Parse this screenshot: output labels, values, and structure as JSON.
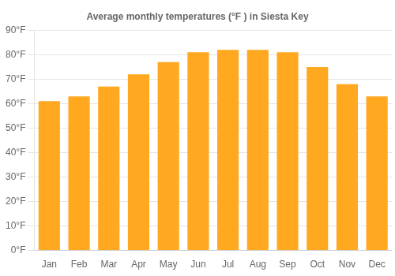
{
  "chart_data": {
    "type": "bar",
    "title": "Average monthly temperatures (°F ) in Siesta Key",
    "categories": [
      "Jan",
      "Feb",
      "Mar",
      "Apr",
      "May",
      "Jun",
      "Jul",
      "Aug",
      "Sep",
      "Oct",
      "Nov",
      "Dec"
    ],
    "values": [
      61,
      63,
      67,
      72,
      77,
      81,
      82,
      82,
      81,
      75,
      68,
      63
    ],
    "color": "#FFA820",
    "ylim": [
      0,
      90
    ],
    "yticks": [
      {
        "value": 0,
        "label": "0°F"
      },
      {
        "value": 10,
        "label": "10°F"
      },
      {
        "value": 20,
        "label": "20°F"
      },
      {
        "value": 30,
        "label": "30°F"
      },
      {
        "value": 40,
        "label": "40°F"
      },
      {
        "value": 50,
        "label": "50°F"
      },
      {
        "value": 60,
        "label": "60°F"
      },
      {
        "value": 70,
        "label": "70°F"
      },
      {
        "value": 80,
        "label": "80°F"
      },
      {
        "value": 90,
        "label": "90°F"
      }
    ],
    "grid": true
  }
}
